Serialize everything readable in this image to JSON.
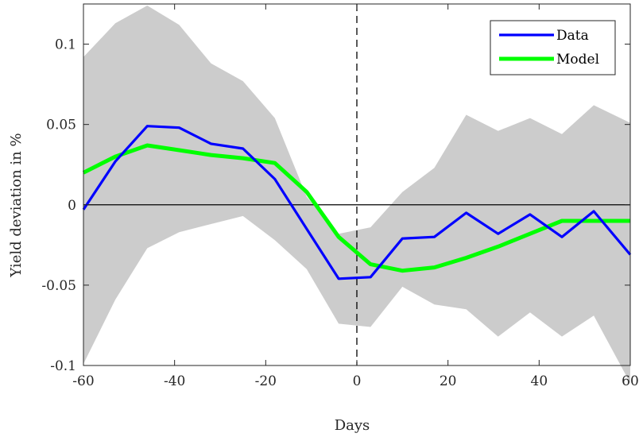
{
  "chart_data": {
    "type": "line",
    "title": "",
    "xlabel": "Days",
    "ylabel": "Yield deviation in %",
    "xlim": [
      -60,
      60
    ],
    "ylim": [
      -0.1,
      0.125
    ],
    "xticks": [
      -60,
      -40,
      -20,
      0,
      20,
      40,
      60
    ],
    "yticks": [
      -0.1,
      -0.05,
      0,
      0.05,
      0.1
    ],
    "xtick_labels": [
      "-60",
      "-40",
      "-20",
      "0",
      "20",
      "40",
      "60"
    ],
    "ytick_labels": [
      "-0.1",
      "-0.05",
      "0",
      "0.05",
      "0.1"
    ],
    "grid": false,
    "legend_position": "top-right",
    "vertical_reference_x": 0,
    "horizontal_reference_y": 0,
    "confidence_band": {
      "x": [
        -60,
        -53,
        -46,
        -39,
        -32,
        -25,
        -18,
        -11,
        -4,
        3,
        10,
        17,
        24,
        31,
        38,
        45,
        52,
        60
      ],
      "upper": [
        0.092,
        0.113,
        0.124,
        0.112,
        0.088,
        0.077,
        0.054,
        0.005,
        -0.018,
        -0.014,
        0.008,
        0.023,
        0.056,
        0.046,
        0.054,
        0.044,
        0.062,
        0.051
      ],
      "lower": [
        -0.099,
        -0.059,
        -0.027,
        -0.017,
        -0.012,
        -0.007,
        -0.022,
        -0.04,
        -0.074,
        -0.076,
        -0.051,
        -0.062,
        -0.065,
        -0.082,
        -0.067,
        -0.082,
        -0.069,
        -0.111
      ],
      "color": "#cccccc"
    },
    "series": [
      {
        "name": "Data",
        "color": "#0000ff",
        "x": [
          -60,
          -53,
          -46,
          -39,
          -32,
          -25,
          -18,
          -11,
          -4,
          3,
          10,
          17,
          24,
          31,
          38,
          45,
          52,
          60
        ],
        "values": [
          -0.003,
          0.027,
          0.049,
          0.048,
          0.038,
          0.035,
          0.016,
          -0.015,
          -0.046,
          -0.045,
          -0.021,
          -0.02,
          -0.005,
          -0.018,
          -0.006,
          -0.02,
          -0.004,
          -0.031
        ]
      },
      {
        "name": "Model",
        "color": "#00ff00",
        "x": [
          -60,
          -53,
          -46,
          -39,
          -32,
          -25,
          -18,
          -11,
          -4,
          3,
          10,
          17,
          24,
          31,
          38,
          45,
          52,
          60
        ],
        "values": [
          0.02,
          0.03,
          0.037,
          0.034,
          0.031,
          0.029,
          0.026,
          0.008,
          -0.02,
          -0.037,
          -0.041,
          -0.039,
          -0.033,
          -0.026,
          -0.018,
          -0.01,
          -0.01,
          -0.01
        ]
      }
    ]
  }
}
